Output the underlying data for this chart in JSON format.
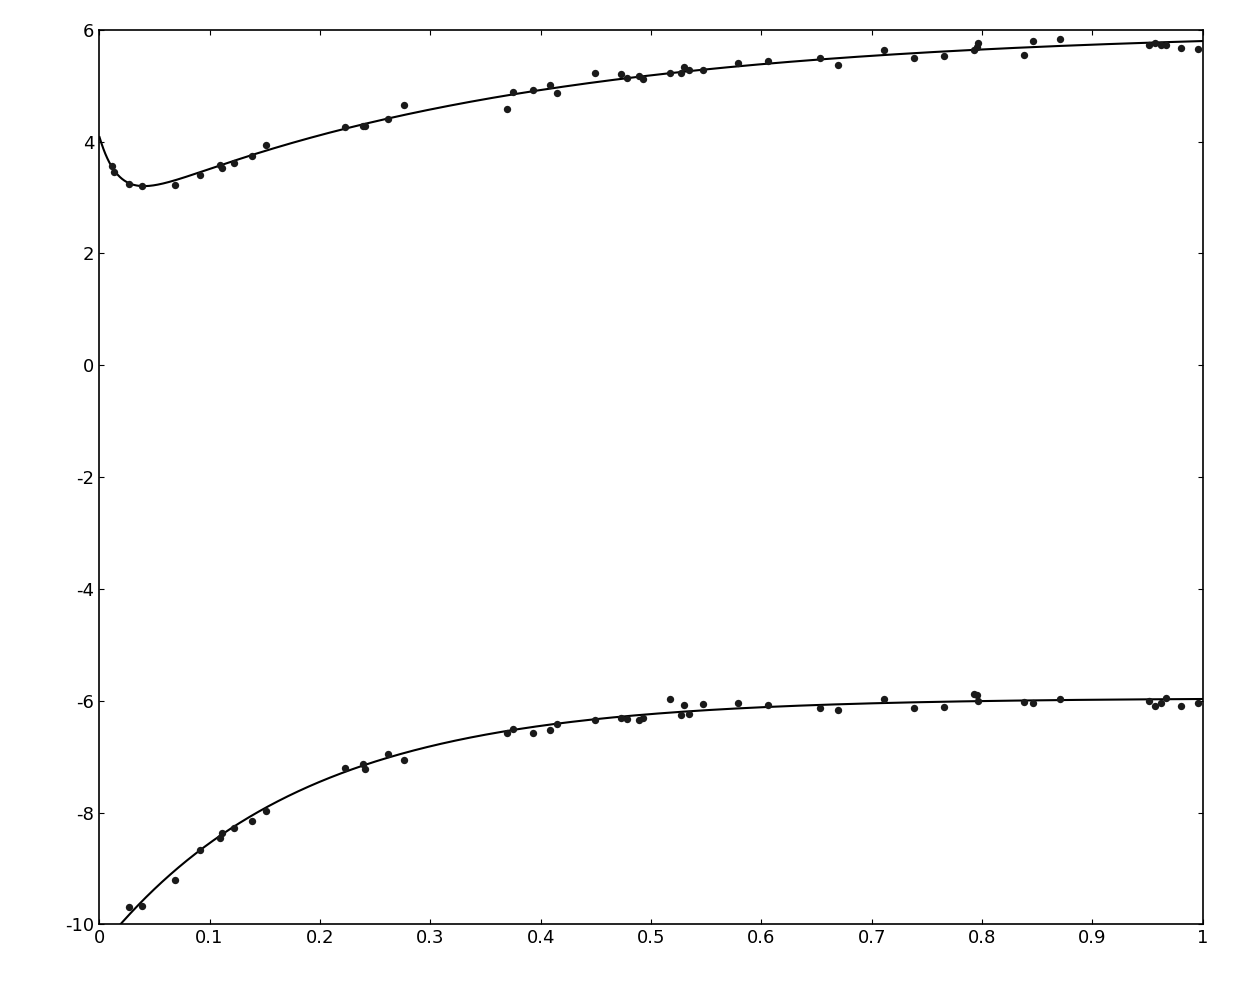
{
  "xlim": [
    0,
    1
  ],
  "ylim": [
    -10,
    6
  ],
  "xticks": [
    0,
    0.1,
    0.2,
    0.3,
    0.4,
    0.5,
    0.6,
    0.7,
    0.8,
    0.9,
    1.0
  ],
  "yticks": [
    -10,
    -8,
    -6,
    -4,
    -2,
    0,
    2,
    4,
    6
  ],
  "line_color": "#000000",
  "dot_color": "#1a1a1a",
  "background_color": "#ffffff",
  "upper": {
    "inf": 6.0,
    "A": 2.7,
    "alpha": 2.8,
    "B": 1.4,
    "beta": 55.0
  },
  "lower": {
    "asymptote": -5.95,
    "C": 4.5,
    "gamma": 5.5
  },
  "figsize": [
    12.4,
    9.94
  ],
  "dpi": 100,
  "scatter_seed": 12,
  "scatter_noise": 0.08,
  "n_scatter": 50,
  "linewidth": 1.5,
  "dot_size": 28
}
